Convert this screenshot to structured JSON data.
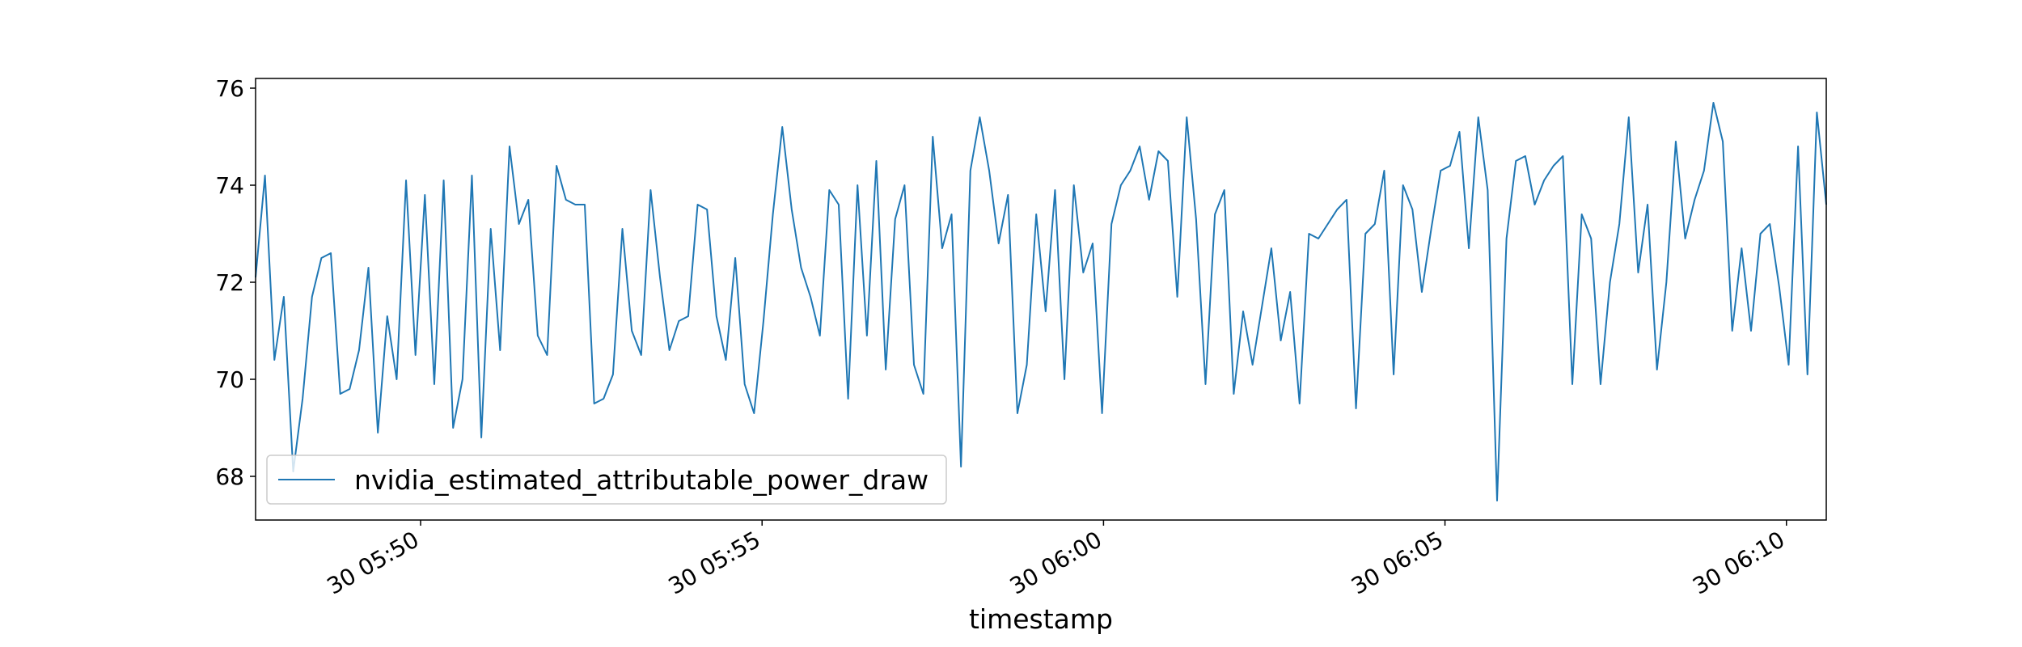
{
  "chart_data": {
    "type": "line",
    "xlabel": "timestamp",
    "ylabel": "",
    "title": "",
    "x_start": "30 05:47:35",
    "x_end": "30 06:10:35",
    "xlim": [
      "30 05:47:35",
      "30 06:10:35"
    ],
    "ylim": [
      67.1,
      76.2
    ],
    "grid": false,
    "legend_position": "lower-left",
    "x_ticks": [
      {
        "t": "30 05:50:00",
        "label": "30 05:50"
      },
      {
        "t": "30 05:55:00",
        "label": "30 05:55"
      },
      {
        "t": "30 06:00:00",
        "label": "30 06:00"
      },
      {
        "t": "30 06:05:00",
        "label": "30 06:05"
      },
      {
        "t": "30 06:10:00",
        "label": "30 06:10"
      }
    ],
    "y_ticks": [
      {
        "v": 68,
        "label": "68"
      },
      {
        "v": 70,
        "label": "70"
      },
      {
        "v": 72,
        "label": "72"
      },
      {
        "v": 74,
        "label": "74"
      },
      {
        "v": 76,
        "label": "76"
      }
    ],
    "series": [
      {
        "name": "nvidia_estimated_attributable_power_draw",
        "color": "#1f77b4",
        "values": [
          72.1,
          74.2,
          70.4,
          71.7,
          68.1,
          69.6,
          71.7,
          72.5,
          72.6,
          69.7,
          69.8,
          70.6,
          72.3,
          68.9,
          71.3,
          70.0,
          74.1,
          70.5,
          73.8,
          69.9,
          74.1,
          69.0,
          70.0,
          74.2,
          68.8,
          73.1,
          70.6,
          74.8,
          73.2,
          73.7,
          70.9,
          70.5,
          74.4,
          73.7,
          73.6,
          73.6,
          69.5,
          69.6,
          70.1,
          73.1,
          71.0,
          70.5,
          73.9,
          72.1,
          70.6,
          71.2,
          71.3,
          73.6,
          73.5,
          71.3,
          70.4,
          72.5,
          69.9,
          69.3,
          71.2,
          73.4,
          75.2,
          73.5,
          72.3,
          71.7,
          70.9,
          73.9,
          73.6,
          69.6,
          74.0,
          70.9,
          74.5,
          70.2,
          73.3,
          74.0,
          70.3,
          69.7,
          75.0,
          72.7,
          73.4,
          68.2,
          74.3,
          75.4,
          74.3,
          72.8,
          73.8,
          69.3,
          70.3,
          73.4,
          71.4,
          73.9,
          70.0,
          74.0,
          72.2,
          72.8,
          69.3,
          73.2,
          74.0,
          74.3,
          74.8,
          73.7,
          74.7,
          74.5,
          71.7,
          75.4,
          73.3,
          69.9,
          73.4,
          73.9,
          69.7,
          71.4,
          70.3,
          71.5,
          72.7,
          70.8,
          71.8,
          69.5,
          73.0,
          72.9,
          73.2,
          73.5,
          73.7,
          69.4,
          73.0,
          73.2,
          74.3,
          70.1,
          74.0,
          73.5,
          71.8,
          73.1,
          74.3,
          74.4,
          75.1,
          72.7,
          75.4,
          73.9,
          67.5,
          72.9,
          74.5,
          74.6,
          73.6,
          74.1,
          74.4,
          74.6,
          69.9,
          73.4,
          72.9,
          69.9,
          72.0,
          73.2,
          75.4,
          72.2,
          73.6,
          70.2,
          72.0,
          74.9,
          72.9,
          73.7,
          74.3,
          75.7,
          74.9,
          71.0,
          72.7,
          71.0,
          73.0,
          73.2,
          71.9,
          70.3,
          74.8,
          70.1,
          75.5,
          73.6
        ]
      }
    ]
  }
}
